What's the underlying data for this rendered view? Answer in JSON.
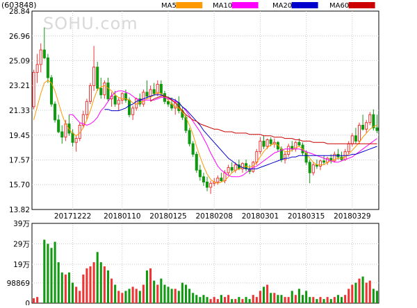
{
  "header": {
    "code": "(603848)",
    "watermark": "SOHU.com"
  },
  "legend": [
    {
      "name": "MA5",
      "color": "#FF9900"
    },
    {
      "name": "MA10",
      "color": "#FF00FF"
    },
    {
      "name": "MA20",
      "color": "#0000CC"
    },
    {
      "name": "MA60",
      "color": "#CC0000"
    }
  ],
  "colors": {
    "up": "#EE3333",
    "down": "#119911",
    "grid": "#C8C8C8",
    "axis": "#000000"
  },
  "chart_data": [
    {
      "type": "candlestick",
      "title": "(603848)",
      "yticks": [
        "28.84",
        "26.96",
        "25.09",
        "23.21",
        "21.33",
        "19.45",
        "17.57",
        "15.70",
        "13.82"
      ],
      "ylim": [
        13.82,
        28.84
      ],
      "date_labels": [
        "20171222",
        "20180110",
        "20180125",
        "20180208",
        "20180301",
        "20180315",
        "20180329"
      ],
      "date_label_indices": [
        11,
        25,
        38,
        51,
        64,
        77,
        90
      ],
      "ohlc": [
        [
          21.6,
          24.4,
          21.4,
          24.2
        ],
        [
          24.2,
          25.6,
          23.4,
          24.8
        ],
        [
          24.8,
          26.4,
          24.2,
          25.9
        ],
        [
          25.9,
          27.6,
          25.2,
          25.3
        ],
        [
          25.3,
          25.6,
          23.4,
          23.8
        ],
        [
          23.8,
          24.0,
          21.6,
          21.8
        ],
        [
          21.8,
          22.0,
          20.4,
          20.6
        ],
        [
          20.6,
          21.0,
          19.6,
          19.7
        ],
        [
          19.7,
          20.2,
          18.8,
          19.3
        ],
        [
          19.3,
          20.6,
          19.0,
          20.3
        ],
        [
          20.3,
          21.0,
          19.4,
          19.6
        ],
        [
          19.6,
          19.9,
          18.6,
          18.9
        ],
        [
          18.9,
          19.4,
          18.2,
          19.2
        ],
        [
          19.2,
          20.4,
          19.0,
          20.2
        ],
        [
          20.2,
          21.3,
          20.0,
          21.0
        ],
        [
          21.0,
          22.2,
          20.6,
          22.0
        ],
        [
          22.0,
          23.4,
          21.8,
          23.2
        ],
        [
          23.2,
          26.2,
          22.8,
          24.6
        ],
        [
          24.6,
          25.0,
          22.8,
          23.0
        ],
        [
          23.0,
          23.8,
          22.2,
          22.5
        ],
        [
          22.5,
          23.6,
          22.2,
          23.4
        ],
        [
          23.4,
          23.8,
          22.0,
          22.2
        ],
        [
          22.2,
          22.7,
          21.6,
          22.4
        ],
        [
          22.4,
          22.8,
          21.6,
          21.8
        ],
        [
          21.8,
          22.3,
          21.3,
          22.1
        ],
        [
          22.1,
          22.7,
          21.8,
          22.6
        ],
        [
          22.6,
          22.9,
          21.9,
          22.1
        ],
        [
          22.1,
          22.3,
          20.8,
          21.0
        ],
        [
          21.0,
          21.7,
          20.6,
          21.5
        ],
        [
          21.5,
          22.3,
          21.3,
          22.2
        ],
        [
          22.2,
          22.6,
          21.6,
          21.8
        ],
        [
          21.8,
          22.9,
          21.6,
          22.7
        ],
        [
          22.7,
          23.6,
          22.2,
          22.4
        ],
        [
          22.4,
          23.2,
          22.0,
          22.9
        ],
        [
          22.9,
          23.4,
          22.4,
          22.6
        ],
        [
          22.6,
          23.6,
          22.4,
          23.3
        ],
        [
          23.3,
          23.6,
          22.4,
          22.6
        ],
        [
          22.6,
          22.8,
          21.8,
          22.0
        ],
        [
          22.0,
          22.4,
          21.6,
          21.8
        ],
        [
          21.8,
          22.3,
          21.3,
          21.5
        ],
        [
          21.5,
          22.2,
          21.0,
          21.9
        ],
        [
          21.9,
          22.4,
          21.1,
          21.3
        ],
        [
          21.3,
          21.6,
          20.6,
          20.8
        ],
        [
          20.8,
          21.0,
          19.6,
          19.8
        ],
        [
          19.8,
          20.0,
          18.6,
          18.8
        ],
        [
          18.8,
          19.0,
          17.8,
          18.0
        ],
        [
          18.0,
          18.2,
          16.6,
          16.8
        ],
        [
          16.8,
          17.2,
          16.0,
          16.3
        ],
        [
          16.3,
          16.6,
          15.6,
          15.9
        ],
        [
          15.9,
          16.3,
          15.2,
          15.5
        ],
        [
          15.5,
          16.0,
          15.0,
          15.8
        ],
        [
          15.8,
          16.2,
          15.6,
          15.9
        ],
        [
          15.9,
          16.4,
          15.7,
          16.2
        ],
        [
          16.2,
          16.6,
          15.9,
          16.0
        ],
        [
          16.0,
          16.8,
          15.8,
          16.6
        ],
        [
          16.6,
          17.2,
          16.4,
          17.0
        ],
        [
          17.0,
          17.4,
          16.6,
          16.8
        ],
        [
          16.8,
          17.4,
          16.6,
          17.2
        ],
        [
          17.2,
          17.6,
          16.8,
          16.9
        ],
        [
          16.9,
          17.4,
          16.6,
          17.3
        ],
        [
          17.3,
          17.6,
          16.7,
          16.9
        ],
        [
          16.9,
          17.2,
          16.5,
          16.7
        ],
        [
          16.7,
          17.5,
          16.6,
          17.4
        ],
        [
          17.4,
          18.4,
          17.2,
          18.2
        ],
        [
          18.2,
          19.3,
          18.0,
          19.0
        ],
        [
          19.0,
          19.4,
          18.4,
          18.6
        ],
        [
          18.6,
          19.2,
          18.4,
          19.1
        ],
        [
          19.1,
          19.3,
          18.6,
          18.8
        ],
        [
          18.8,
          19.2,
          18.5,
          18.9
        ],
        [
          18.9,
          19.0,
          18.2,
          18.4
        ],
        [
          18.4,
          18.6,
          17.4,
          17.6
        ],
        [
          17.6,
          18.2,
          17.3,
          18.0
        ],
        [
          18.0,
          18.8,
          17.8,
          18.6
        ],
        [
          18.6,
          19.0,
          18.2,
          18.4
        ],
        [
          18.4,
          19.0,
          18.2,
          18.9
        ],
        [
          18.9,
          19.2,
          18.6,
          18.7
        ],
        [
          18.7,
          18.9,
          17.9,
          18.1
        ],
        [
          18.1,
          18.3,
          17.2,
          17.4
        ],
        [
          17.4,
          17.6,
          15.8,
          16.6
        ],
        [
          16.6,
          17.4,
          16.4,
          17.2
        ],
        [
          17.2,
          17.6,
          16.9,
          17.1
        ],
        [
          17.1,
          17.6,
          16.8,
          17.5
        ],
        [
          17.5,
          17.9,
          17.2,
          17.4
        ],
        [
          17.4,
          17.8,
          17.2,
          17.7
        ],
        [
          17.7,
          18.0,
          17.3,
          17.5
        ],
        [
          17.5,
          18.2,
          17.4,
          18.0
        ],
        [
          18.0,
          18.4,
          17.6,
          17.8
        ],
        [
          17.8,
          18.2,
          17.5,
          17.6
        ],
        [
          17.6,
          18.4,
          17.5,
          18.2
        ],
        [
          18.2,
          19.0,
          18.0,
          18.8
        ],
        [
          18.8,
          19.6,
          18.6,
          19.4
        ],
        [
          19.4,
          20.0,
          18.8,
          19.0
        ],
        [
          19.0,
          20.4,
          18.8,
          20.2
        ],
        [
          20.2,
          21.0,
          19.8,
          19.9
        ],
        [
          19.9,
          20.6,
          19.6,
          20.4
        ],
        [
          20.4,
          21.2,
          20.2,
          21.0
        ],
        [
          21.0,
          21.4,
          19.8,
          20.0
        ],
        [
          20.0,
          21.0,
          19.6,
          19.8
        ]
      ],
      "ma_lines": {
        "MA5": [
          20.6,
          21.6,
          22.6,
          23.4,
          23.6,
          23.4,
          22.8,
          21.9,
          21.0,
          20.3,
          19.9,
          19.6,
          19.4,
          19.6,
          20.0,
          20.6,
          21.3,
          22.2,
          22.9,
          23.1,
          23.2,
          23.0,
          22.8,
          22.5,
          22.3,
          22.2,
          22.2,
          22.1,
          21.9,
          21.8,
          21.9,
          22.0,
          22.2,
          22.3,
          22.5,
          22.7,
          22.6,
          22.4,
          22.1,
          21.8,
          21.6,
          21.5,
          21.2,
          20.8,
          20.2,
          19.5,
          18.6,
          17.8,
          17.1,
          16.5,
          16.1,
          15.9,
          15.8,
          15.9,
          16.0,
          16.3,
          16.6,
          16.8,
          16.9,
          17.0,
          17.1,
          17.0,
          17.1,
          17.4,
          17.8,
          18.2,
          18.5,
          18.7,
          18.8,
          18.7,
          18.4,
          18.2,
          18.2,
          18.3,
          18.5,
          18.6,
          18.4,
          18.1,
          17.7,
          17.4,
          17.2,
          17.2,
          17.2,
          17.4,
          17.5,
          17.6,
          17.7,
          17.7,
          17.8,
          18.0,
          18.3,
          18.6,
          18.9,
          19.3,
          19.6,
          19.9,
          20.1,
          20.2
        ],
        "MA10": [
          null,
          null,
          null,
          null,
          null,
          null,
          null,
          null,
          null,
          null,
          21.0,
          21.0,
          20.7,
          20.4,
          20.3,
          20.2,
          20.3,
          20.5,
          20.8,
          21.3,
          21.6,
          22.0,
          22.4,
          22.7,
          22.8,
          22.8,
          22.7,
          22.6,
          22.4,
          22.2,
          22.1,
          22.1,
          22.1,
          22.1,
          22.1,
          22.2,
          22.3,
          22.3,
          22.2,
          22.1,
          22.0,
          21.9,
          21.6,
          21.3,
          20.9,
          20.5,
          20.1,
          19.7,
          19.2,
          18.7,
          18.1,
          17.6,
          17.1,
          16.8,
          16.6,
          16.4,
          16.3,
          16.3,
          16.3,
          16.4,
          16.6,
          16.8,
          17.0,
          17.1,
          17.3,
          17.5,
          17.7,
          17.9,
          18.1,
          18.2,
          18.3,
          18.4,
          18.4,
          18.4,
          18.4,
          18.4,
          18.3,
          18.2,
          18.1,
          18.0,
          17.9,
          17.8,
          17.7,
          17.6,
          17.5,
          17.4,
          17.4,
          17.5,
          17.6,
          17.7,
          17.8,
          18.0,
          18.2,
          18.4,
          18.6,
          18.8,
          19.0,
          19.2
        ],
        "MA20": [
          null,
          null,
          null,
          null,
          null,
          null,
          null,
          null,
          null,
          null,
          null,
          null,
          null,
          null,
          null,
          null,
          null,
          null,
          null,
          null,
          21.4,
          21.4,
          21.3,
          21.3,
          21.3,
          21.4,
          21.5,
          21.7,
          21.8,
          22.0,
          22.1,
          22.2,
          22.3,
          22.4,
          22.5,
          22.5,
          22.5,
          22.4,
          22.3,
          22.2,
          22.1,
          21.9,
          21.6,
          21.4,
          21.1,
          20.8,
          20.5,
          20.2,
          19.8,
          19.5,
          19.2,
          18.9,
          18.6,
          18.3,
          18.0,
          17.7,
          17.5,
          17.3,
          17.1,
          17.0,
          16.9,
          16.9,
          16.9,
          16.9,
          17.0,
          17.1,
          17.2,
          17.3,
          17.4,
          17.5,
          17.6,
          17.7,
          17.7,
          17.8,
          17.8,
          17.9,
          17.9,
          17.9,
          17.9,
          17.9,
          17.9,
          17.9,
          17.9,
          17.9,
          17.9,
          17.9,
          17.9,
          17.9,
          17.9,
          17.9,
          18.0,
          18.0,
          18.1,
          18.2,
          18.3,
          18.4,
          18.5,
          18.6
        ],
        "MA60": [
          null,
          null,
          null,
          null,
          null,
          null,
          null,
          null,
          null,
          null,
          null,
          null,
          null,
          null,
          null,
          null,
          null,
          null,
          null,
          null,
          null,
          null,
          null,
          null,
          null,
          null,
          null,
          null,
          null,
          null,
          null,
          null,
          null,
          22.0,
          22.2,
          22.3,
          22.4,
          22.4,
          22.3,
          22.1,
          21.9,
          21.6,
          21.3,
          21.0,
          20.8,
          20.6,
          20.5,
          20.3,
          20.2,
          20.1,
          20.0,
          19.9,
          19.9,
          19.8,
          19.7,
          19.7,
          19.7,
          19.6,
          19.6,
          19.6,
          19.6,
          19.5,
          19.5,
          19.5,
          19.5,
          19.4,
          19.4,
          19.4,
          19.3,
          19.3,
          19.3,
          19.2,
          19.2,
          19.2,
          19.1,
          19.1,
          19.0,
          19.0,
          19.0,
          18.9,
          18.9,
          18.9,
          18.9,
          18.8,
          18.8,
          18.8,
          18.8,
          18.8,
          18.8,
          18.8,
          18.8,
          18.8,
          18.8,
          18.8,
          18.8,
          18.8,
          18.8,
          18.8
        ]
      }
    },
    {
      "type": "bar",
      "title": "",
      "yticks": [
        "39万",
        "29万",
        "19万",
        "98869",
        "0"
      ],
      "ylim": [
        0,
        390000
      ],
      "values": [
        24000,
        30000,
        0,
        310000,
        290000,
        270000,
        300000,
        200000,
        150000,
        140000,
        150000,
        100000,
        80000,
        60000,
        140000,
        170000,
        180000,
        200000,
        250000,
        200000,
        180000,
        160000,
        120000,
        90000,
        60000,
        50000,
        60000,
        70000,
        80000,
        70000,
        60000,
        90000,
        160000,
        170000,
        110000,
        90000,
        120000,
        90000,
        80000,
        70000,
        70000,
        60000,
        100000,
        90000,
        70000,
        50000,
        40000,
        30000,
        40000,
        30000,
        20000,
        30000,
        20000,
        40000,
        30000,
        40000,
        20000,
        20000,
        30000,
        20000,
        30000,
        20000,
        40000,
        30000,
        60000,
        80000,
        90000,
        50000,
        50000,
        40000,
        40000,
        30000,
        30000,
        60000,
        40000,
        70000,
        40000,
        60000,
        30000,
        30000,
        20000,
        30000,
        20000,
        30000,
        20000,
        30000,
        40000,
        30000,
        40000,
        70000,
        90000,
        100000,
        120000,
        130000,
        100000,
        110000,
        70000,
        60000
      ],
      "colors_by_bar": "up=red, down=green"
    }
  ]
}
